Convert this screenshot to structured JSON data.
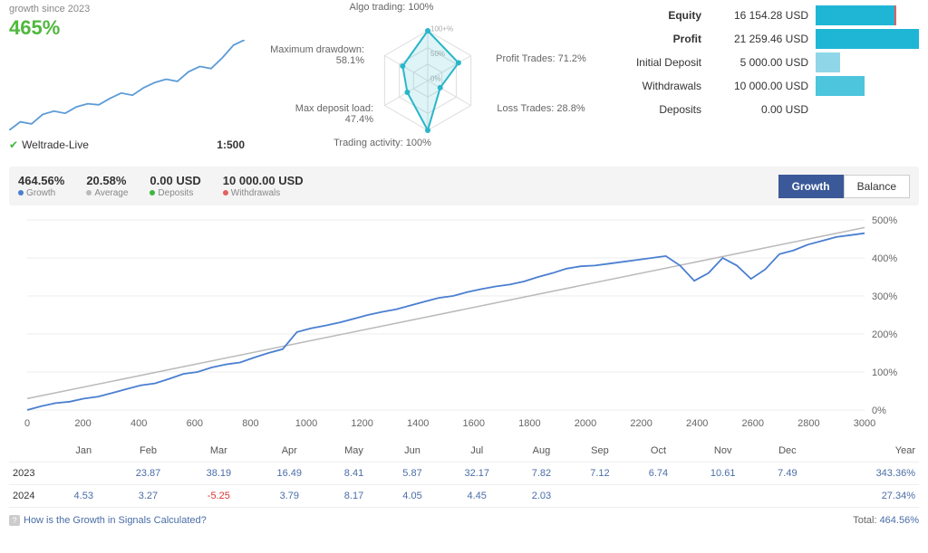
{
  "mini": {
    "growth_label": "growth since 2023",
    "growth_value": "465%",
    "broker_name": "Weltrade-Live",
    "leverage": "1:500",
    "spark_color": "#5b9bd5",
    "spark_points": [
      0,
      8,
      6,
      15,
      18,
      16,
      22,
      25,
      24,
      30,
      35,
      33,
      40,
      45,
      48,
      46,
      55,
      60,
      58,
      68,
      80,
      85
    ]
  },
  "radar": {
    "axes": [
      {
        "label": "Algo trading: 100%",
        "value": 1.0
      },
      {
        "label": "Profit Trades: 71.2%",
        "value": 0.712
      },
      {
        "label": "Loss Trades: 28.8%",
        "value": 0.288
      },
      {
        "label": "Trading activity: 100%",
        "value": 1.0
      },
      {
        "label": "Max deposit load:\n47.4%",
        "value": 0.474
      },
      {
        "label": "Maximum drawdown:\n58.1%",
        "value": 0.581
      }
    ],
    "ring_labels": [
      "0%",
      "50%",
      "100+%"
    ],
    "stroke_color": "#29b6c9",
    "fill_color": "rgba(41,182,201,0.15)",
    "grid_color": "#ddd",
    "label_color": "#666"
  },
  "stats": {
    "rows": [
      {
        "label": "Equity",
        "value": "16 154.28 USD",
        "bar_pct": 76,
        "color": "#1fb6d6",
        "bold": true,
        "marker": true
      },
      {
        "label": "Profit",
        "value": "21 259.46 USD",
        "bar_pct": 100,
        "color": "#1fb6d6",
        "bold": true
      },
      {
        "label": "Initial Deposit",
        "value": "5 000.00 USD",
        "bar_pct": 24,
        "color": "#8fd7e8",
        "bold": false
      },
      {
        "label": "Withdrawals",
        "value": "10 000.00 USD",
        "bar_pct": 47,
        "color": "#4cc5dd",
        "bold": false
      },
      {
        "label": "Deposits",
        "value": "0.00 USD",
        "bar_pct": 0,
        "color": "#8fd7e8",
        "bold": false
      }
    ]
  },
  "legend": {
    "items": [
      {
        "value": "464.56%",
        "sub": "Growth",
        "dot": "#4a7fd1"
      },
      {
        "value": "20.58%",
        "sub": "Average",
        "dot": "#bababa"
      },
      {
        "value": "0.00 USD",
        "sub": "Deposits",
        "dot": "#3fb63f"
      },
      {
        "value": "10 000.00 USD",
        "sub": "Withdrawals",
        "dot": "#e46060"
      }
    ],
    "tab_growth": "Growth",
    "tab_balance": "Balance"
  },
  "chart": {
    "x_min": 0,
    "x_max": 3000,
    "x_step": 200,
    "y_min": 0,
    "y_max": 500,
    "y_step": 100,
    "y_suffix": "%",
    "trend_color": "#bababa",
    "line_color": "#4a7fd1",
    "grid_color": "#eee",
    "axis_color": "#888",
    "series": [
      0,
      10,
      18,
      22,
      30,
      35,
      45,
      55,
      65,
      70,
      82,
      95,
      100,
      112,
      120,
      125,
      138,
      150,
      160,
      205,
      215,
      222,
      230,
      240,
      250,
      258,
      265,
      275,
      285,
      295,
      300,
      310,
      318,
      325,
      330,
      338,
      350,
      360,
      372,
      378,
      380,
      385,
      390,
      395,
      400,
      405,
      380,
      340,
      360,
      400,
      380,
      345,
      370,
      410,
      420,
      435,
      445,
      455,
      460,
      465
    ]
  },
  "table": {
    "months": [
      "Jan",
      "Feb",
      "Mar",
      "Apr",
      "May",
      "Jun",
      "Jul",
      "Aug",
      "Sep",
      "Oct",
      "Nov",
      "Dec"
    ],
    "year_header": "Year",
    "rows": [
      {
        "year": "2023",
        "vals": [
          "",
          "23.87",
          "38.19",
          "16.49",
          "8.41",
          "5.87",
          "32.17",
          "7.82",
          "7.12",
          "6.74",
          "10.61",
          "7.49"
        ],
        "total": "343.36%"
      },
      {
        "year": "2024",
        "vals": [
          "4.53",
          "3.27",
          "-5.25",
          "3.79",
          "8.17",
          "4.05",
          "4.45",
          "2.03",
          "",
          "",
          "",
          ""
        ],
        "total": "27.34%"
      }
    ]
  },
  "footer": {
    "help_text": "How is the Growth in Signals Calculated?",
    "total_label": "Total:",
    "total_value": "464.56%"
  }
}
